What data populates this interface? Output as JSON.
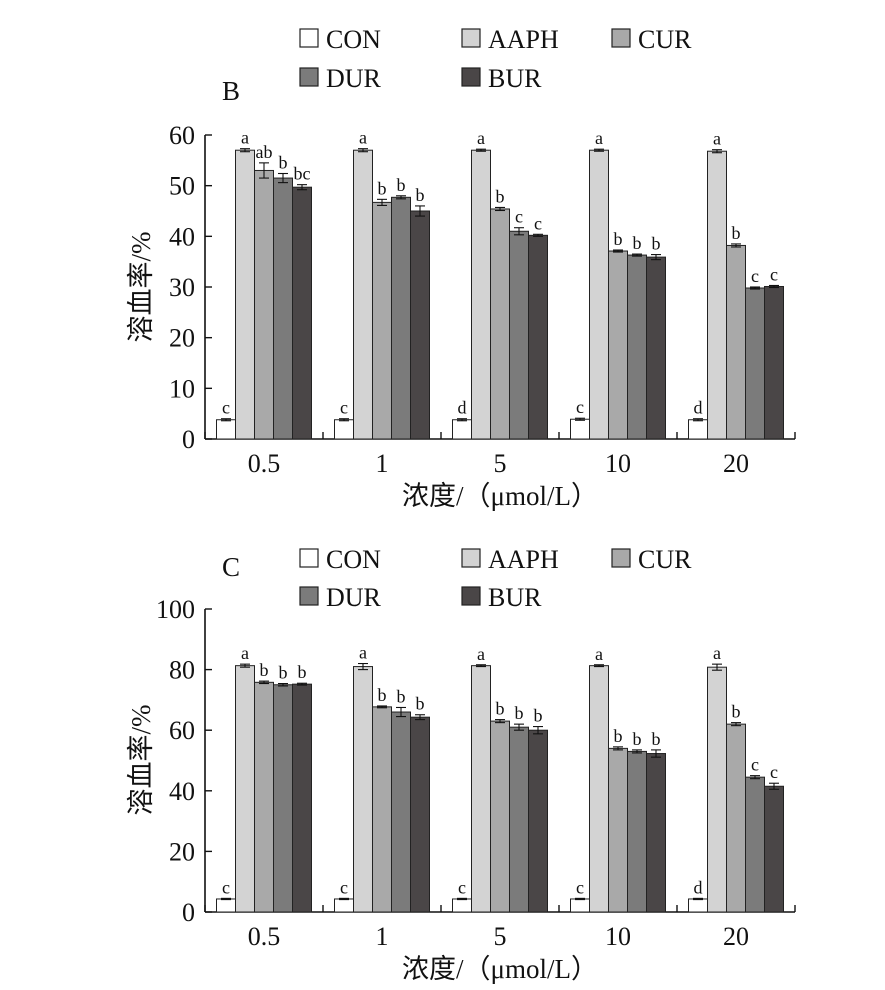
{
  "chart_data": [
    {
      "type": "bar",
      "panel_label": "B",
      "title": "",
      "xlabel": "浓度/（μmol/L）",
      "ylabel": "溶血率/%",
      "categories": [
        "0.5",
        "1",
        "5",
        "10",
        "20"
      ],
      "ylim": [
        0,
        60
      ],
      "yticks": [
        "0",
        "10",
        "20",
        "30",
        "40",
        "50",
        "60"
      ],
      "legend_position": "top",
      "series": [
        {
          "name": "CON",
          "color": "#ffffff",
          "values": [
            3.8,
            3.8,
            3.8,
            3.9,
            3.8
          ],
          "errors": [
            0.2,
            0.2,
            0.2,
            0.2,
            0.2
          ],
          "sig": [
            "c",
            "c",
            "d",
            "c",
            "d"
          ]
        },
        {
          "name": "AAPH",
          "color": "#d3d3d3",
          "values": [
            57.0,
            57.0,
            57.0,
            57.0,
            56.8
          ],
          "errors": [
            0.3,
            0.3,
            0.2,
            0.2,
            0.3
          ],
          "sig": [
            "a",
            "a",
            "a",
            "a",
            "a"
          ]
        },
        {
          "name": "CUR",
          "color": "#a9a9a9",
          "values": [
            53.0,
            46.7,
            45.4,
            37.1,
            38.2
          ],
          "errors": [
            1.5,
            0.6,
            0.3,
            0.2,
            0.3
          ],
          "sig": [
            "ab",
            "b",
            "b",
            "b",
            "b"
          ]
        },
        {
          "name": "DUR",
          "color": "#7b7b7b",
          "values": [
            51.5,
            47.7,
            41.0,
            36.3,
            29.8
          ],
          "errors": [
            0.9,
            0.3,
            0.7,
            0.2,
            0.2
          ],
          "sig": [
            "b",
            "b",
            "c",
            "b",
            "c"
          ]
        },
        {
          "name": "BUR",
          "color": "#4a4647",
          "values": [
            49.7,
            45.0,
            40.2,
            35.9,
            30.1
          ],
          "errors": [
            0.5,
            1.0,
            0.2,
            0.5,
            0.2
          ],
          "sig": [
            "bc",
            "b",
            "c",
            "b",
            "c"
          ]
        }
      ]
    },
    {
      "type": "bar",
      "panel_label": "C",
      "title": "",
      "xlabel": "浓度/（μmol/L）",
      "ylabel": "溶血率/%",
      "categories": [
        "0.5",
        "1",
        "5",
        "10",
        "20"
      ],
      "ylim": [
        0,
        100
      ],
      "yticks": [
        "0",
        "20",
        "40",
        "60",
        "80",
        "100"
      ],
      "legend_position": "top",
      "series": [
        {
          "name": "CON",
          "color": "#ffffff",
          "values": [
            4.3,
            4.3,
            4.3,
            4.3,
            4.3
          ],
          "errors": [
            0.2,
            0.2,
            0.2,
            0.2,
            0.2
          ],
          "sig": [
            "c",
            "c",
            "c",
            "c",
            "d"
          ]
        },
        {
          "name": "AAPH",
          "color": "#d3d3d3",
          "values": [
            81.3,
            81.0,
            81.3,
            81.3,
            80.8
          ],
          "errors": [
            0.5,
            1.0,
            0.3,
            0.3,
            1.0
          ],
          "sig": [
            "a",
            "a",
            "a",
            "a",
            "a"
          ]
        },
        {
          "name": "CUR",
          "color": "#a9a9a9",
          "values": [
            75.8,
            67.7,
            63.0,
            54.0,
            62.0
          ],
          "errors": [
            0.4,
            0.3,
            0.5,
            0.5,
            0.5
          ],
          "sig": [
            "b",
            "b",
            "b",
            "b",
            "b"
          ]
        },
        {
          "name": "DUR",
          "color": "#7b7b7b",
          "values": [
            75.0,
            66.0,
            61.0,
            53.0,
            44.5
          ],
          "errors": [
            0.4,
            1.5,
            1.0,
            0.5,
            0.5
          ],
          "sig": [
            "b",
            "b",
            "b",
            "b",
            "c"
          ]
        },
        {
          "name": "BUR",
          "color": "#4a4647",
          "values": [
            75.2,
            64.3,
            60.0,
            52.3,
            41.5
          ],
          "errors": [
            0.3,
            0.8,
            1.2,
            1.2,
            1.0
          ],
          "sig": [
            "b",
            "b",
            "b",
            "b",
            "c"
          ]
        }
      ]
    }
  ]
}
